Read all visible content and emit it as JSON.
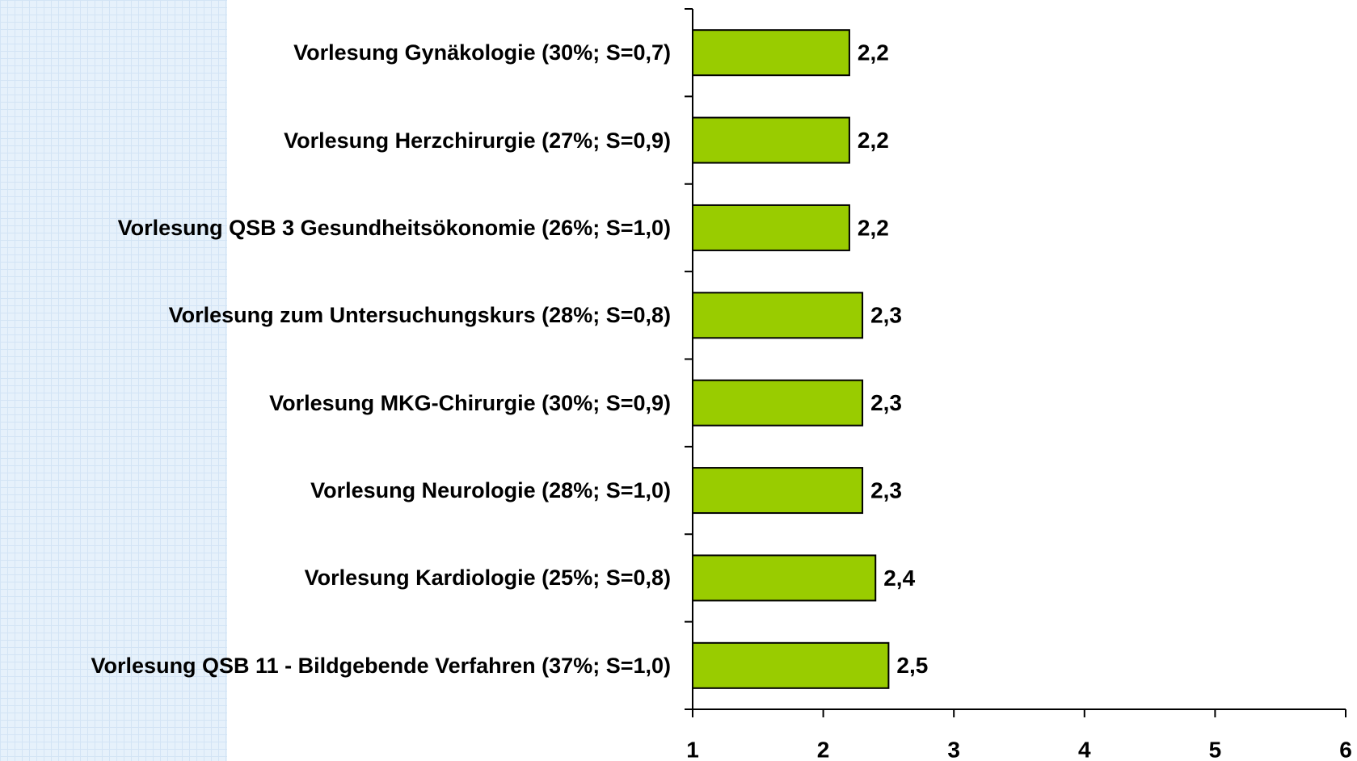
{
  "chart_data": {
    "type": "barh",
    "categories": [
      "Vorlesung Gynäkologie (30%; S=0,7)",
      "Vorlesung Herzchirurgie (27%; S=0,9)",
      "Vorlesung QSB 3 Gesundheitsökonomie (26%; S=1,0)",
      "Vorlesung zum Untersuchungskurs (28%; S=0,8)",
      "Vorlesung MKG-Chirurgie (30%; S=0,9)",
      "Vorlesung Neurologie (28%; S=1,0)",
      "Vorlesung Kardiologie (25%; S=0,8)",
      "Vorlesung QSB 11 - Bildgebende Verfahren (37%; S=1,0)"
    ],
    "values": [
      2.2,
      2.2,
      2.2,
      2.3,
      2.3,
      2.3,
      2.4,
      2.5
    ],
    "value_labels": [
      "2,2",
      "2,2",
      "2,2",
      "2,3",
      "2,3",
      "2,3",
      "2,4",
      "2,5"
    ],
    "color": "#99cc00",
    "xlim": [
      1,
      6
    ],
    "xticks": [
      1,
      2,
      3,
      4,
      5,
      6
    ]
  }
}
